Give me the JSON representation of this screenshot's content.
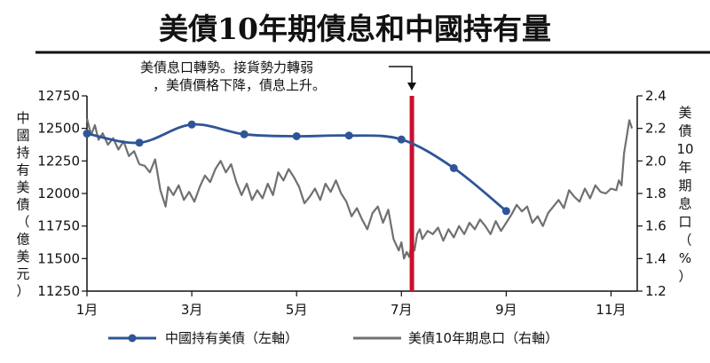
{
  "title": "美債10年期債息和中國持有量",
  "annotation": {
    "line1": "美債息口轉勢。接貨勢力轉弱",
    "line2": "，美債價格下降，債息上升。"
  },
  "colors": {
    "china_holdings": "#2f5597",
    "yield": "#707070",
    "event_line": "#c8102e",
    "rule": "#111111"
  },
  "chart_data": {
    "type": "line",
    "title": "美債10年期債息和中國持有量",
    "x_tick_labels": [
      "1月",
      "3月",
      "5月",
      "7月",
      "9月",
      "11月"
    ],
    "x_tick_months": [
      1,
      3,
      5,
      7,
      9,
      11
    ],
    "xlim": [
      1,
      11.5
    ],
    "left_axis": {
      "label": "中國持有美債（億美元）",
      "label_chars": [
        "中",
        "國",
        "持",
        "有",
        "美",
        "債",
        "（",
        "億",
        "美",
        "元",
        "）"
      ],
      "ylim": [
        11250,
        12750
      ],
      "ticks": [
        12750,
        12500,
        12250,
        12000,
        11750,
        11500,
        11250
      ]
    },
    "right_axis": {
      "label": "美債10年期息口（%）",
      "label_chars": [
        "美",
        "債",
        "10",
        "年",
        "期",
        "息",
        "口",
        "（",
        "%",
        "）"
      ],
      "ylim": [
        1.2,
        2.4
      ],
      "ticks": [
        "2.4",
        "2.2",
        "2.0",
        "1.8",
        "1.6",
        "1.4",
        "1.2"
      ]
    },
    "event_month": 7.2,
    "series": [
      {
        "name": "中國持有美債（左軸）",
        "axis": "left",
        "style": "line-markers",
        "x": [
          1,
          2,
          3,
          4,
          5,
          6,
          7,
          8,
          9
        ],
        "values": [
          12460,
          12390,
          12530,
          12455,
          12440,
          12445,
          12415,
          12195,
          11865
        ]
      },
      {
        "name": "美債10年期息口（右軸）",
        "axis": "right",
        "style": "line",
        "x": [
          1.0,
          1.08,
          1.15,
          1.22,
          1.3,
          1.4,
          1.5,
          1.6,
          1.7,
          1.8,
          1.9,
          2.0,
          2.1,
          2.2,
          2.3,
          2.4,
          2.5,
          2.55,
          2.65,
          2.75,
          2.85,
          2.95,
          3.05,
          3.15,
          3.25,
          3.35,
          3.45,
          3.55,
          3.65,
          3.75,
          3.85,
          3.95,
          4.05,
          4.15,
          4.25,
          4.35,
          4.45,
          4.55,
          4.65,
          4.75,
          4.85,
          4.95,
          5.05,
          5.15,
          5.25,
          5.35,
          5.45,
          5.55,
          5.65,
          5.75,
          5.85,
          5.95,
          6.05,
          6.15,
          6.25,
          6.35,
          6.45,
          6.55,
          6.65,
          6.75,
          6.85,
          6.95,
          7.0,
          7.05,
          7.1,
          7.15,
          7.2,
          7.25,
          7.3,
          7.35,
          7.4,
          7.5,
          7.6,
          7.7,
          7.8,
          7.9,
          8.0,
          8.1,
          8.2,
          8.3,
          8.4,
          8.5,
          8.6,
          8.7,
          8.8,
          8.9,
          9.0,
          9.1,
          9.2,
          9.3,
          9.4,
          9.5,
          9.6,
          9.7,
          9.8,
          9.9,
          10.0,
          10.1,
          10.2,
          10.3,
          10.4,
          10.5,
          10.6,
          10.7,
          10.8,
          10.9,
          11.0,
          11.1,
          11.15,
          11.2,
          11.25,
          11.3,
          11.35,
          11.4
        ],
        "values": [
          2.26,
          2.16,
          2.22,
          2.13,
          2.17,
          2.1,
          2.14,
          2.07,
          2.12,
          2.03,
          2.06,
          1.98,
          1.97,
          1.93,
          2.01,
          1.82,
          1.72,
          1.84,
          1.79,
          1.85,
          1.76,
          1.81,
          1.75,
          1.84,
          1.91,
          1.87,
          1.95,
          2.0,
          1.93,
          1.98,
          1.87,
          1.79,
          1.86,
          1.76,
          1.82,
          1.77,
          1.86,
          1.79,
          1.93,
          1.88,
          1.95,
          1.9,
          1.84,
          1.74,
          1.78,
          1.83,
          1.76,
          1.86,
          1.81,
          1.88,
          1.8,
          1.75,
          1.66,
          1.71,
          1.64,
          1.58,
          1.68,
          1.72,
          1.62,
          1.7,
          1.52,
          1.45,
          1.5,
          1.4,
          1.44,
          1.41,
          1.5,
          1.45,
          1.55,
          1.58,
          1.52,
          1.57,
          1.55,
          1.59,
          1.51,
          1.58,
          1.53,
          1.6,
          1.55,
          1.62,
          1.58,
          1.64,
          1.6,
          1.55,
          1.63,
          1.57,
          1.62,
          1.67,
          1.73,
          1.69,
          1.72,
          1.62,
          1.66,
          1.6,
          1.68,
          1.72,
          1.76,
          1.71,
          1.82,
          1.78,
          1.75,
          1.83,
          1.77,
          1.85,
          1.81,
          1.8,
          1.83,
          1.82,
          1.88,
          1.85,
          2.05,
          2.15,
          2.25,
          2.2
        ]
      }
    ],
    "legend": {
      "placement": "bottom",
      "entries": [
        "中國持有美債（左軸）",
        "美債10年期息口（右軸）"
      ]
    }
  }
}
